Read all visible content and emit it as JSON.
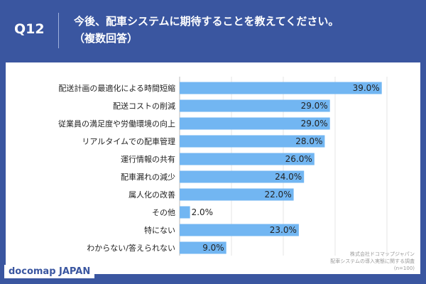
{
  "header": {
    "question_number": "Q12",
    "title_line1": "今後、配車システムに期待することを教えてください。",
    "title_line2": "（複数回答）"
  },
  "chart_data": {
    "type": "bar",
    "orientation": "horizontal",
    "categories": [
      "配送計画の最適化による時間短縮",
      "配送コストの削減",
      "従業員の満足度や労働環境の向上",
      "リアルタイムでの配車管理",
      "運行情報の共有",
      "配車漏れの減少",
      "属人化の改善",
      "その他",
      "特にない",
      "わからない/答えられない"
    ],
    "values": [
      39.0,
      29.0,
      29.0,
      28.0,
      26.0,
      24.0,
      22.0,
      2.0,
      23.0,
      9.0
    ],
    "value_labels": [
      "39.0%",
      "29.0%",
      "29.0%",
      "28.0%",
      "26.0%",
      "24.0%",
      "22.0%",
      "2.0%",
      "23.0%",
      "9.0%"
    ],
    "xlim": [
      0,
      45
    ],
    "grid": true,
    "bar_color": "#72b6f2"
  },
  "source": {
    "line1": "株式会社ドコマップジャパン",
    "line2": "配車システムの導入実態に関する調査",
    "line3": "(n=100)"
  },
  "logo": "docomap JAPAN"
}
